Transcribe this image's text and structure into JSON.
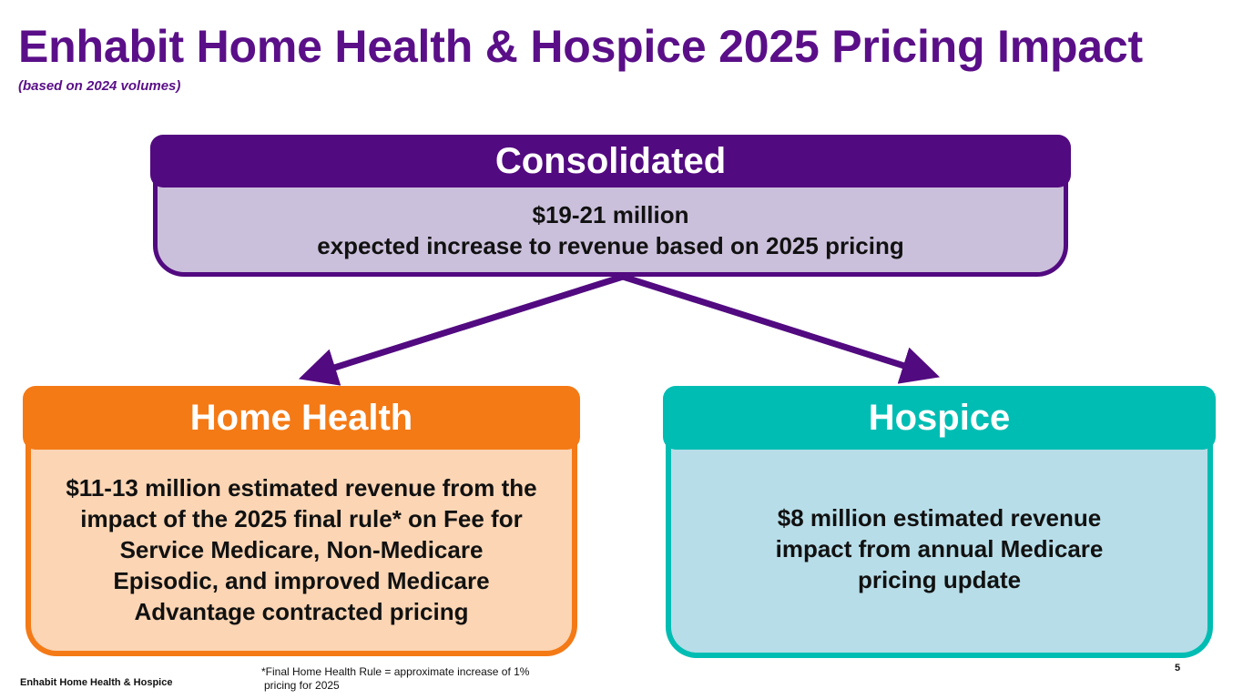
{
  "title": "Enhabit Home Health & Hospice 2025 Pricing Impact",
  "subtitle": "(based on 2024 volumes)",
  "colors": {
    "title": "#5a0f88",
    "consolidated": "#520a80",
    "consolidated_fill": "#cbc0db",
    "home_health": "#f47a16",
    "home_health_fill": "#fbd5b4",
    "hospice": "#00bdb3",
    "hospice_fill": "#b7dde8"
  },
  "consolidated": {
    "heading": "Consolidated",
    "line1": "$19-21 million",
    "line2": "expected increase to revenue based on 2025 pricing"
  },
  "home_health": {
    "heading": "Home Health",
    "lines": [
      "$11-13 million estimated revenue from the",
      "impact of the 2025 final rule* on Fee for",
      "Service Medicare, Non-Medicare",
      "Episodic, and improved Medicare",
      "Advantage contracted pricing"
    ]
  },
  "hospice": {
    "heading": "Hospice",
    "lines": [
      "$8 million estimated revenue",
      "impact from annual Medicare",
      "pricing update"
    ]
  },
  "footer": {
    "company": "Enhabit Home Health & Hospice",
    "footnote_line1": "*Final Home Health Rule = approximate increase of 1%",
    "footnote_line2": "pricing for 2025",
    "page_number": "5"
  }
}
